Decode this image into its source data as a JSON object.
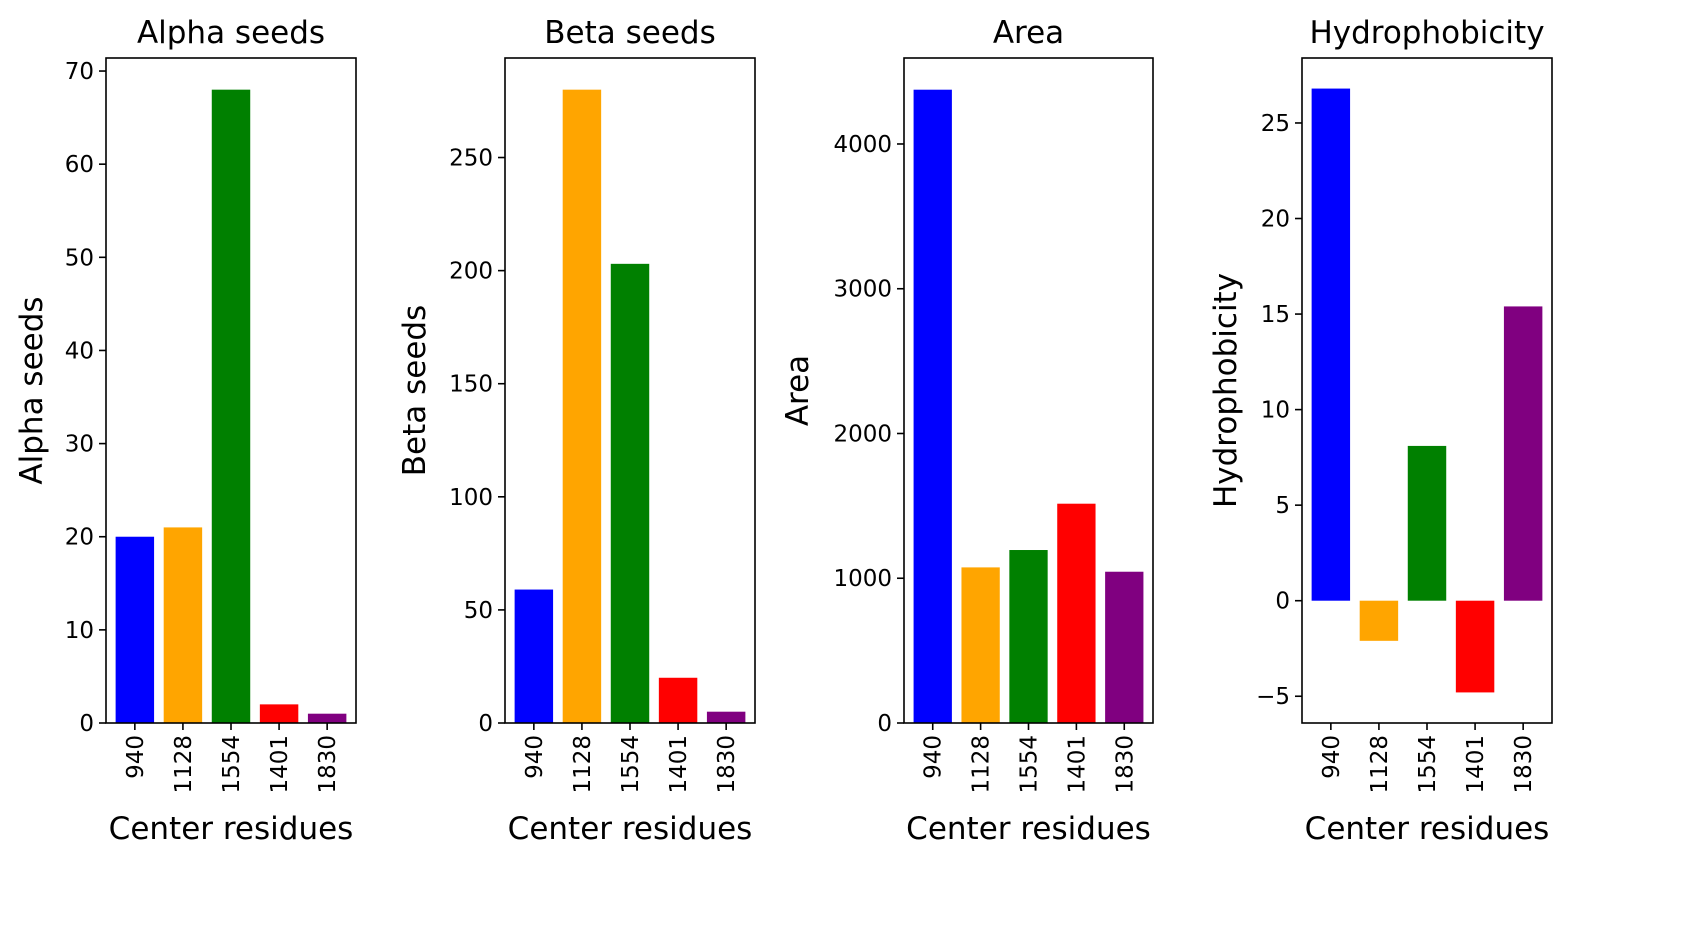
{
  "figure": {
    "background": "#ffffff",
    "bar_colors": [
      "#0000ff",
      "#ffa500",
      "#008000",
      "#ff0000",
      "#800080"
    ]
  },
  "chart_data": [
    {
      "type": "bar",
      "title": "Alpha seeds",
      "xlabel": "Center residues",
      "ylabel": "Alpha seeds",
      "categories": [
        "940",
        "1128",
        "1554",
        "1401",
        "1830"
      ],
      "values": [
        20,
        21,
        68,
        2,
        1
      ],
      "ylim": [
        0,
        71.4
      ],
      "yticks": [
        0,
        10,
        20,
        30,
        40,
        50,
        60,
        70
      ],
      "grid": false,
      "legend": "none"
    },
    {
      "type": "bar",
      "title": "Beta seeds",
      "xlabel": "Center residues",
      "ylabel": "Beta seeds",
      "categories": [
        "940",
        "1128",
        "1554",
        "1401",
        "1830"
      ],
      "values": [
        59,
        280,
        203,
        20,
        5
      ],
      "ylim": [
        0,
        294
      ],
      "yticks": [
        0,
        50,
        100,
        150,
        200,
        250
      ],
      "grid": false,
      "legend": "none"
    },
    {
      "type": "bar",
      "title": "Area",
      "xlabel": "Center residues",
      "ylabel": "Area",
      "categories": [
        "940",
        "1128",
        "1554",
        "1401",
        "1830"
      ],
      "values": [
        4375,
        1075,
        1195,
        1515,
        1045
      ],
      "ylim": [
        0,
        4594
      ],
      "yticks": [
        0,
        1000,
        2000,
        3000,
        4000
      ],
      "grid": false,
      "legend": "none"
    },
    {
      "type": "bar",
      "title": "Hydrophobicity",
      "xlabel": "Center residues",
      "ylabel": "Hydrophobicity",
      "categories": [
        "940",
        "1128",
        "1554",
        "1401",
        "1830"
      ],
      "values": [
        26.8,
        -2.1,
        8.1,
        -4.8,
        15.4
      ],
      "ylim": [
        -6.4,
        28.4
      ],
      "yticks": [
        -5,
        0,
        5,
        10,
        15,
        20,
        25
      ],
      "grid": false,
      "legend": "none"
    }
  ]
}
